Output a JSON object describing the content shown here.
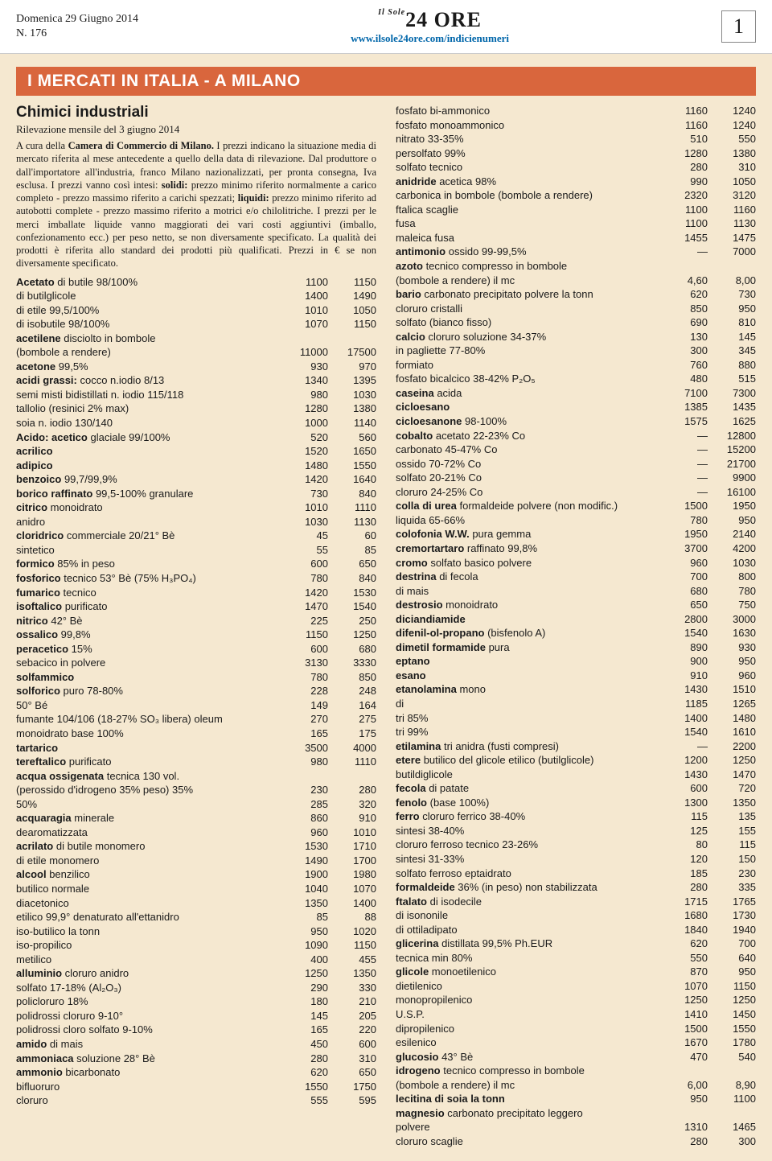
{
  "header": {
    "date": "Domenica 29 Giugno 2014",
    "issue": "N. 176",
    "logo_pre": "Il Sole",
    "logo_main": "24 ORE",
    "url": "www.ilsole24ore.com/indicienumeri",
    "page_num": "1"
  },
  "section": {
    "title": "I MERCATI IN ITALIA - A MILANO",
    "subtitle": "Chimici industriali",
    "subline": "Rilevazione mensile del 3 giugno 2014",
    "intro_lead": "A cura della ",
    "intro_bold": "Camera di Commercio di Milano.",
    "intro_body": " I prezzi indicano la situazione media di mercato riferita al mese antecedente a quello della data di rilevazione. Dal produttore o dall'importatore all'industria, franco Milano nazionalizzati, per pronta consegna, Iva esclusa. I prezzi vanno così intesi: ",
    "intro_b2": "solidi:",
    "intro_body2": " prezzo minimo riferito normalmente a carico completo - prezzo massimo riferito a carichi spezzati; ",
    "intro_b3": "liquidi:",
    "intro_body3": " prezzo minimo riferito ad autobotti complete - prezzo massimo riferito a motrici e/o chilolitriche. I prezzi per le merci imballate liquide vanno maggiorati dei vari costi aggiuntivi (imballo, confezionamento ecc.) per peso netto, se non diversamente specificato. La qualità dei prodotti è riferita allo standard dei prodotti più qualificati. Prezzi in € se non diversamente specificato."
  },
  "colors": {
    "page_bg": "#f5e8d0",
    "section_bg": "#d9663d",
    "url": "#0066aa"
  },
  "left": [
    {
      "b": 1,
      "l": "Acetato",
      "r": " di butile 98/100%",
      "v1": "1100",
      "v2": "1150"
    },
    {
      "l": "di butilglicole",
      "v1": "1400",
      "v2": "1490"
    },
    {
      "l": "di etile 99,5/100%",
      "v1": "1010",
      "v2": "1050"
    },
    {
      "l": "di isobutile 98/100%",
      "v1": "1070",
      "v2": "1150"
    },
    {
      "b": 1,
      "l": "acetilene",
      "r": " disciolto in bombole",
      "v1": "",
      "v2": ""
    },
    {
      "l": "(bombole a rendere)",
      "v1": "11000",
      "v2": "17500"
    },
    {
      "b": 1,
      "l": "acetone",
      "r": " 99,5%",
      "v1": "930",
      "v2": "970"
    },
    {
      "b": 1,
      "l": "acidi grassi:",
      "r": " cocco n.iodio 8/13",
      "v1": "1340",
      "v2": "1395"
    },
    {
      "l": "semi misti bidistillati n. iodio 115/118",
      "v1": "980",
      "v2": "1030"
    },
    {
      "l": "tallolio (resinici 2% max)",
      "v1": "1280",
      "v2": "1380"
    },
    {
      "l": "soia n. iodio 130/140",
      "v1": "1000",
      "v2": "1140"
    },
    {
      "b": 1,
      "l": "Acido: acetico",
      "r": " glaciale 99/100%",
      "v1": "520",
      "v2": "560"
    },
    {
      "b": 1,
      "l": "acrilico",
      "r": "",
      "v1": "1520",
      "v2": "1650"
    },
    {
      "b": 1,
      "l": "adipico",
      "r": "",
      "v1": "1480",
      "v2": "1550"
    },
    {
      "b": 1,
      "l": "benzoico",
      "r": " 99,7/99,9%",
      "v1": "1420",
      "v2": "1640"
    },
    {
      "b": 1,
      "l": "borico raffinato",
      "r": " 99,5-100% granulare",
      "v1": "730",
      "v2": "840"
    },
    {
      "b": 1,
      "l": "citrico",
      "r": " monoidrato",
      "v1": "1010",
      "v2": "1110"
    },
    {
      "l": "anidro",
      "v1": "1030",
      "v2": "1130"
    },
    {
      "b": 1,
      "l": "cloridrico",
      "r": " commerciale 20/21° Bè",
      "v1": "45",
      "v2": "60"
    },
    {
      "l": "sintetico",
      "v1": "55",
      "v2": "85"
    },
    {
      "b": 1,
      "l": "formico",
      "r": " 85% in peso",
      "v1": "600",
      "v2": "650"
    },
    {
      "b": 1,
      "l": "fosforico",
      "r": " tecnico 53° Bè (75% H₃PO₄)",
      "v1": "780",
      "v2": "840"
    },
    {
      "b": 1,
      "l": "fumarico",
      "r": " tecnico",
      "v1": "1420",
      "v2": "1530"
    },
    {
      "b": 1,
      "l": "isoftalico",
      "r": " purificato",
      "v1": "1470",
      "v2": "1540"
    },
    {
      "b": 1,
      "l": "nitrico",
      "r": " 42° Bè",
      "v1": "225",
      "v2": "250"
    },
    {
      "b": 1,
      "l": "ossalico",
      "r": " 99,8%",
      "v1": "1150",
      "v2": "1250"
    },
    {
      "b": 1,
      "l": "peracetico",
      "r": " 15%",
      "v1": "600",
      "v2": "680"
    },
    {
      "l": "sebacico in polvere",
      "v1": "3130",
      "v2": "3330"
    },
    {
      "b": 1,
      "l": "solfammico",
      "r": "",
      "v1": "780",
      "v2": "850"
    },
    {
      "b": 1,
      "l": "solforico",
      "r": " puro 78-80%",
      "v1": "228",
      "v2": "248"
    },
    {
      "l": "50° Bé",
      "v1": "149",
      "v2": "164"
    },
    {
      "l": "fumante 104/106 (18-27% SO₃ libera) oleum",
      "v1": "270",
      "v2": "275"
    },
    {
      "l": "monoidrato base 100%",
      "v1": "165",
      "v2": "175"
    },
    {
      "b": 1,
      "l": "tartarico",
      "r": "",
      "v1": "3500",
      "v2": "4000"
    },
    {
      "b": 1,
      "l": "tereftalico",
      "r": " purificato",
      "v1": "980",
      "v2": "1110"
    },
    {
      "b": 1,
      "l": "acqua ossigenata",
      "r": " tecnica 130 vol.",
      "v1": "",
      "v2": ""
    },
    {
      "l": "(perossido d'idrogeno 35% peso) 35%",
      "v1": "230",
      "v2": "280"
    },
    {
      "l": "50%",
      "v1": "285",
      "v2": "320"
    },
    {
      "b": 1,
      "l": "acquaragia",
      "r": " minerale",
      "v1": "860",
      "v2": "910"
    },
    {
      "l": "dearomatizzata",
      "v1": "960",
      "v2": "1010"
    },
    {
      "b": 1,
      "l": "acrilato",
      "r": " di butile monomero",
      "v1": "1530",
      "v2": "1710"
    },
    {
      "l": "di etile monomero",
      "v1": "1490",
      "v2": "1700"
    },
    {
      "b": 1,
      "l": "alcool",
      "r": " benzilico",
      "v1": "1900",
      "v2": "1980"
    },
    {
      "l": "butilico normale",
      "v1": "1040",
      "v2": "1070"
    },
    {
      "l": "diacetonico",
      "v1": "1350",
      "v2": "1400"
    },
    {
      "l": "etilico 99,9° denaturato all'ettanidro",
      "v1": "85",
      "v2": "88"
    },
    {
      "l": "iso-butilico la tonn",
      "v1": "950",
      "v2": "1020"
    },
    {
      "l": "iso-propilico",
      "v1": "1090",
      "v2": "1150"
    },
    {
      "l": "metilico",
      "v1": "400",
      "v2": "455"
    },
    {
      "b": 1,
      "l": "alluminio",
      "r": " cloruro anidro",
      "v1": "1250",
      "v2": "1350"
    },
    {
      "l": "solfato 17-18% (Al₂O₃)",
      "v1": "290",
      "v2": "330"
    },
    {
      "l": "policloruro 18%",
      "v1": "180",
      "v2": "210"
    },
    {
      "l": "polidrossi cloruro 9-10°",
      "v1": "145",
      "v2": "205"
    },
    {
      "l": "polidrossi cloro solfato 9-10%",
      "v1": "165",
      "v2": "220"
    },
    {
      "b": 1,
      "l": "amido",
      "r": " di mais",
      "v1": "450",
      "v2": "600"
    },
    {
      "b": 1,
      "l": "ammoniaca",
      "r": " soluzione 28° Bè",
      "v1": "280",
      "v2": "310"
    },
    {
      "b": 1,
      "l": "ammonio",
      "r": " bicarbonato",
      "v1": "620",
      "v2": "650"
    },
    {
      "l": "bifluoruro",
      "v1": "1550",
      "v2": "1750"
    },
    {
      "l": "cloruro",
      "v1": "555",
      "v2": "595"
    }
  ],
  "right": [
    {
      "l": "fosfato bi-ammonico",
      "v1": "1160",
      "v2": "1240"
    },
    {
      "l": "fosfato monoammonico",
      "v1": "1160",
      "v2": "1240"
    },
    {
      "l": "nitrato 33-35%",
      "v1": "510",
      "v2": "550"
    },
    {
      "l": "persolfato 99%",
      "v1": "1280",
      "v2": "1380"
    },
    {
      "l": "solfato tecnico",
      "v1": "280",
      "v2": "310"
    },
    {
      "b": 1,
      "l": "anidride",
      "r": " acetica 98%",
      "v1": "990",
      "v2": "1050"
    },
    {
      "l": "carbonica in bombole (bombole a rendere)",
      "v1": "2320",
      "v2": "3120"
    },
    {
      "l": "ftalica scaglie",
      "v1": "1100",
      "v2": "1160"
    },
    {
      "l": "fusa",
      "v1": "1100",
      "v2": "1130"
    },
    {
      "l": "maleica fusa",
      "v1": "1455",
      "v2": "1475"
    },
    {
      "b": 1,
      "l": "antimonio",
      "r": " ossido 99-99,5%",
      "v1": "—",
      "v2": "7000"
    },
    {
      "b": 1,
      "l": "azoto",
      "r": " tecnico compresso in bombole",
      "v1": "",
      "v2": ""
    },
    {
      "l": "(bombole a rendere) il mc",
      "v1": "4,60",
      "v2": "8,00"
    },
    {
      "b": 1,
      "l": "bario",
      "r": " carbonato precipitato polvere la tonn",
      "v1": "620",
      "v2": "730"
    },
    {
      "l": "cloruro cristalli",
      "v1": "850",
      "v2": "950"
    },
    {
      "l": "solfato (bianco fisso)",
      "v1": "690",
      "v2": "810"
    },
    {
      "b": 1,
      "l": "calcio",
      "r": " cloruro soluzione 34-37%",
      "v1": "130",
      "v2": "145"
    },
    {
      "l": "in pagliette 77-80%",
      "v1": "300",
      "v2": "345"
    },
    {
      "l": "formiato",
      "v1": "760",
      "v2": "880"
    },
    {
      "l": "fosfato bicalcico 38-42% P₂O₅",
      "v1": "480",
      "v2": "515"
    },
    {
      "b": 1,
      "l": "caseina",
      "r": " acida",
      "v1": "7100",
      "v2": "7300"
    },
    {
      "b": 1,
      "l": "cicloesano",
      "r": "",
      "v1": "1385",
      "v2": "1435"
    },
    {
      "b": 1,
      "l": "cicloesanone",
      "r": " 98-100%",
      "v1": "1575",
      "v2": "1625"
    },
    {
      "b": 1,
      "l": "cobalto",
      "r": " acetato 22-23% Co",
      "v1": "—",
      "v2": "12800"
    },
    {
      "l": "carbonato 45-47% Co",
      "v1": "—",
      "v2": "15200"
    },
    {
      "l": "ossido 70-72% Co",
      "v1": "—",
      "v2": "21700"
    },
    {
      "l": "solfato 20-21% Co",
      "v1": "—",
      "v2": "9900"
    },
    {
      "l": "cloruro 24-25% Co",
      "v1": "—",
      "v2": "16100"
    },
    {
      "b": 1,
      "l": "colla di urea",
      "r": " formaldeide polvere (non modific.)",
      "v1": "1500",
      "v2": "1950"
    },
    {
      "l": "liquida 65-66%",
      "v1": "780",
      "v2": "950"
    },
    {
      "b": 1,
      "l": "colofonia W.W.",
      "r": " pura gemma",
      "v1": "1950",
      "v2": "2140"
    },
    {
      "b": 1,
      "l": "cremortartaro",
      "r": " raffinato 99,8%",
      "v1": "3700",
      "v2": "4200"
    },
    {
      "b": 1,
      "l": "cromo",
      "r": " solfato basico polvere",
      "v1": "960",
      "v2": "1030"
    },
    {
      "b": 1,
      "l": "destrina",
      "r": " di fecola",
      "v1": "700",
      "v2": "800"
    },
    {
      "l": "di mais",
      "v1": "680",
      "v2": "780"
    },
    {
      "b": 1,
      "l": "destrosio",
      "r": " monoidrato",
      "v1": "650",
      "v2": "750"
    },
    {
      "b": 1,
      "l": "diciandiamide",
      "r": "",
      "v1": "2800",
      "v2": "3000"
    },
    {
      "b": 1,
      "l": "difenil-ol-propano",
      "r": " (bisfenolo A)",
      "v1": "1540",
      "v2": "1630"
    },
    {
      "b": 1,
      "l": "dimetil formamide",
      "r": " pura",
      "v1": "890",
      "v2": "930"
    },
    {
      "b": 1,
      "l": "eptano",
      "r": "",
      "v1": "900",
      "v2": "950"
    },
    {
      "b": 1,
      "l": "esano",
      "r": "",
      "v1": "910",
      "v2": "960"
    },
    {
      "b": 1,
      "l": "etanolamina",
      "r": " mono",
      "v1": "1430",
      "v2": "1510"
    },
    {
      "l": "di",
      "v1": "1185",
      "v2": "1265"
    },
    {
      "l": "tri 85%",
      "v1": "1400",
      "v2": "1480"
    },
    {
      "l": "tri 99%",
      "v1": "1540",
      "v2": "1610"
    },
    {
      "b": 1,
      "l": "etilamina",
      "r": " tri anidra (fusti compresi)",
      "v1": "—",
      "v2": "2200"
    },
    {
      "b": 1,
      "l": "etere",
      "r": " butilico del glicole etilico (butilglicole)",
      "v1": "1200",
      "v2": "1250"
    },
    {
      "l": "butildiglicole",
      "v1": "1430",
      "v2": "1470"
    },
    {
      "b": 1,
      "l": "fecola",
      "r": " di patate",
      "v1": "600",
      "v2": "720"
    },
    {
      "b": 1,
      "l": "fenolo",
      "r": " (base 100%)",
      "v1": "1300",
      "v2": "1350"
    },
    {
      "b": 1,
      "l": "ferro",
      "r": " cloruro ferrico 38-40%",
      "v1": "115",
      "v2": "135"
    },
    {
      "l": "sintesi 38-40%",
      "v1": "125",
      "v2": "155"
    },
    {
      "l": "cloruro ferroso tecnico 23-26%",
      "v1": "80",
      "v2": "115"
    },
    {
      "l": "sintesi 31-33%",
      "v1": "120",
      "v2": "150"
    },
    {
      "l": "solfato ferroso eptaidrato",
      "v1": "185",
      "v2": "230"
    },
    {
      "b": 1,
      "l": "formaldeide",
      "r": " 36% (in peso) non stabilizzata",
      "v1": "280",
      "v2": "335"
    },
    {
      "b": 1,
      "l": "ftalato",
      "r": " di isodecile",
      "v1": "1715",
      "v2": "1765"
    },
    {
      "l": "di isononile",
      "v1": "1680",
      "v2": "1730"
    },
    {
      "l": "di ottiladipato",
      "v1": "1840",
      "v2": "1940"
    },
    {
      "b": 1,
      "l": "glicerina",
      "r": " distillata 99,5% Ph.EUR",
      "v1": "620",
      "v2": "700"
    },
    {
      "l": "tecnica min 80%",
      "v1": "550",
      "v2": "640"
    },
    {
      "b": 1,
      "l": "glicole",
      "r": " monoetilenico",
      "v1": "870",
      "v2": "950"
    },
    {
      "l": "dietilenico",
      "v1": "1070",
      "v2": "1150"
    },
    {
      "l": "monopropilenico",
      "v1": "1250",
      "v2": "1250"
    },
    {
      "l": "U.S.P.",
      "v1": "1410",
      "v2": "1450"
    },
    {
      "l": "dipropilenico",
      "v1": "1500",
      "v2": "1550"
    },
    {
      "l": "esilenico",
      "v1": "1670",
      "v2": "1780"
    },
    {
      "b": 1,
      "l": "glucosio",
      "r": " 43° Bè",
      "v1": "470",
      "v2": "540"
    },
    {
      "b": 1,
      "l": "idrogeno",
      "r": " tecnico compresso in bombole",
      "v1": "",
      "v2": ""
    },
    {
      "l": "(bombole a rendere) il mc",
      "v1": "6,00",
      "v2": "8,90"
    },
    {
      "b": 1,
      "l": "lecitina di soia la tonn",
      "r": "",
      "v1": "950",
      "v2": "1100"
    },
    {
      "b": 1,
      "l": "magnesio",
      "r": " carbonato precipitato leggero",
      "v1": "",
      "v2": ""
    },
    {
      "l": "polvere",
      "v1": "1310",
      "v2": "1465"
    },
    {
      "l": "cloruro scaglie",
      "v1": "280",
      "v2": "300"
    }
  ]
}
